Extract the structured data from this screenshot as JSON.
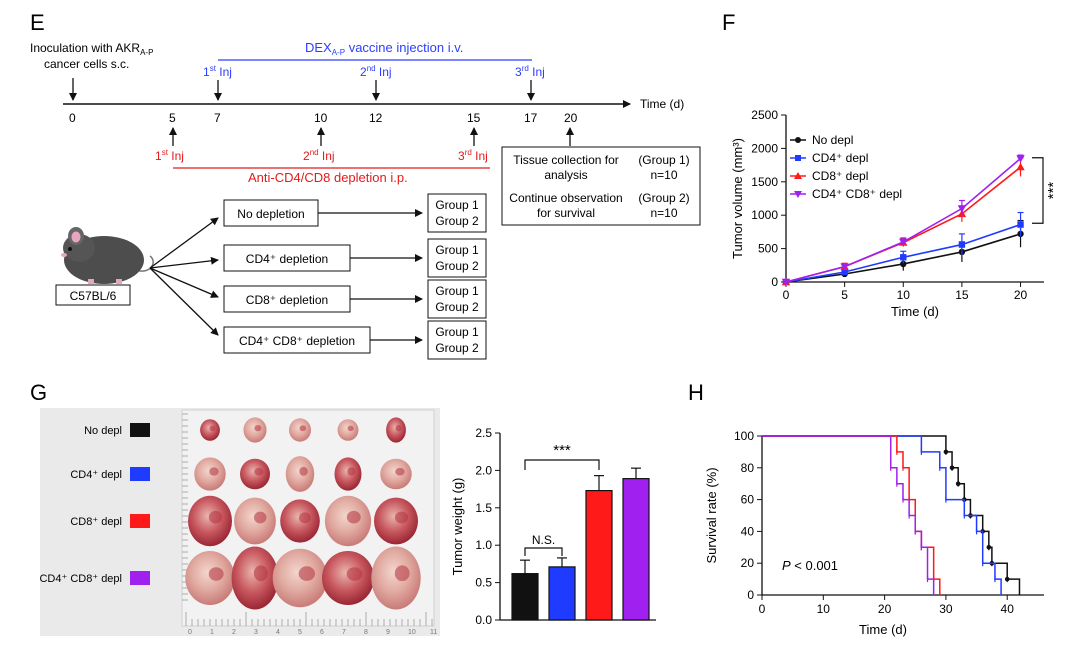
{
  "panels": {
    "E": "E",
    "F": "F",
    "G": "G",
    "H": "H"
  },
  "colors": {
    "black": "#111111",
    "blue": "#1f3bff",
    "red": "#ff1a1a",
    "purple": "#a020f0",
    "timeline_blue": "#2d3dff",
    "timeline_red": "#e41a1c",
    "photo_bg": "#ececec"
  },
  "panel_e": {
    "inoculation": [
      "Inoculation with AKR",
      "cancer cells s.c."
    ],
    "inoculation_sub": "A-P",
    "dex_title": "DEX",
    "dex_sub": "A-P",
    "dex_rest": " vaccine injection i.v.",
    "inj_labels": [
      {
        "n": "1",
        "sup": "st",
        "t": " Inj"
      },
      {
        "n": "2",
        "sup": "nd",
        "t": " Inj"
      },
      {
        "n": "3",
        "sup": "rd",
        "t": " Inj"
      }
    ],
    "time_label": "Time (d)",
    "days": [
      "0",
      "5",
      "7",
      "10",
      "12",
      "15",
      "17",
      "20"
    ],
    "depl_label": "Anti-CD4/CD8 depletion i.p.",
    "tissue_box": {
      "row1_left": [
        "Tissue collection for",
        "analysis"
      ],
      "row1_right": [
        "(Group 1)",
        "n=10"
      ],
      "row2_left": [
        "Continue observation",
        "for survival"
      ],
      "row2_right": [
        "(Group 2)",
        "n=10"
      ]
    },
    "mouse_label": "C57BL/6",
    "groups": [
      {
        "label": "No depletion"
      },
      {
        "label": "CD4⁺ depletion"
      },
      {
        "label": "CD8⁺ depletion"
      },
      {
        "label": "CD4⁺ CD8⁺ depletion"
      }
    ],
    "group_box": [
      "Group 1",
      "Group 2"
    ]
  },
  "legend": [
    {
      "label": "No depl",
      "color": "#111111",
      "marker": "circle"
    },
    {
      "label": "CD4⁺ depl",
      "color": "#1f3bff",
      "marker": "square"
    },
    {
      "label": "CD8⁺ depl",
      "color": "#ff1a1a",
      "marker": "triangle"
    },
    {
      "label": "CD4⁺ CD8⁺ depl",
      "color": "#a020f0",
      "marker": "triangle-down"
    }
  ],
  "significance": {
    "triple": "***",
    "ns": "N.S."
  },
  "chart_data": [
    {
      "id": "F",
      "type": "line",
      "xlabel": "Time (d)",
      "ylabel": "Tumor volume (mm³)",
      "xlim": [
        0,
        22
      ],
      "ylim": [
        0,
        2500
      ],
      "xticks": [
        0,
        5,
        10,
        15,
        20
      ],
      "yticks": [
        0,
        500,
        1000,
        1500,
        2000,
        2500
      ],
      "x": [
        0,
        5,
        10,
        15,
        20
      ],
      "series": [
        {
          "name": "No depl",
          "values": [
            0,
            120,
            270,
            450,
            720
          ],
          "err": [
            0,
            40,
            100,
            150,
            200
          ]
        },
        {
          "name": "CD4⁺ depl",
          "values": [
            0,
            150,
            370,
            560,
            860
          ],
          "err": [
            0,
            40,
            90,
            160,
            180
          ]
        },
        {
          "name": "CD8⁺ depl",
          "values": [
            0,
            230,
            590,
            1020,
            1720
          ],
          "err": [
            0,
            50,
            60,
            120,
            140
          ]
        },
        {
          "name": "CD4⁺ CD8⁺ depl",
          "values": [
            0,
            230,
            600,
            1100,
            1850
          ],
          "err": [
            0,
            40,
            60,
            120,
            50
          ]
        }
      ]
    },
    {
      "id": "G",
      "type": "bar",
      "ylabel": "Tumor weight (g)",
      "ylim": [
        0,
        2.5
      ],
      "yticks": [
        "0.0",
        "0.5",
        "1.0",
        "1.5",
        "2.0",
        "2.5"
      ],
      "categories": [
        "No depl",
        "CD4⁺ depl",
        "CD8⁺ depl",
        "CD4⁺ CD8⁺ depl"
      ],
      "values": [
        0.62,
        0.71,
        1.73,
        1.89
      ],
      "err": [
        0.18,
        0.12,
        0.2,
        0.14
      ]
    },
    {
      "id": "H",
      "type": "line",
      "step": true,
      "xlabel": "Time (d)",
      "ylabel": "Survival rate (%)",
      "xlim": [
        0,
        46
      ],
      "ylim": [
        0,
        100
      ],
      "xticks": [
        0,
        10,
        20,
        30,
        40
      ],
      "yticks": [
        0,
        20,
        40,
        60,
        80,
        100
      ],
      "annotation": "P < 0.001",
      "series": [
        {
          "name": "No depl",
          "points": [
            [
              0,
              100
            ],
            [
              30,
              100
            ],
            [
              30,
              90
            ],
            [
              31,
              90
            ],
            [
              31,
              80
            ],
            [
              32,
              80
            ],
            [
              32,
              70
            ],
            [
              33,
              70
            ],
            [
              33,
              60
            ],
            [
              34,
              60
            ],
            [
              34,
              50
            ],
            [
              36,
              50
            ],
            [
              36,
              40
            ],
            [
              37,
              40
            ],
            [
              37,
              30
            ],
            [
              37.5,
              30
            ],
            [
              37.5,
              20
            ],
            [
              40,
              20
            ],
            [
              40,
              10
            ],
            [
              42,
              10
            ],
            [
              42,
              0
            ]
          ]
        },
        {
          "name": "CD4⁺ depl",
          "points": [
            [
              0,
              100
            ],
            [
              26,
              100
            ],
            [
              26,
              90
            ],
            [
              29,
              90
            ],
            [
              29,
              80
            ],
            [
              30,
              80
            ],
            [
              30,
              60
            ],
            [
              33,
              60
            ],
            [
              33,
              50
            ],
            [
              35,
              50
            ],
            [
              35,
              40
            ],
            [
              36,
              40
            ],
            [
              36,
              20
            ],
            [
              38,
              20
            ],
            [
              38,
              10
            ],
            [
              39,
              10
            ],
            [
              39,
              0
            ]
          ]
        },
        {
          "name": "CD8⁺ depl",
          "points": [
            [
              0,
              100
            ],
            [
              22,
              100
            ],
            [
              22,
              90
            ],
            [
              23,
              90
            ],
            [
              23,
              80
            ],
            [
              24,
              80
            ],
            [
              24,
              60
            ],
            [
              25,
              60
            ],
            [
              25,
              40
            ],
            [
              26,
              40
            ],
            [
              26,
              30
            ],
            [
              28,
              30
            ],
            [
              28,
              10
            ],
            [
              29,
              10
            ],
            [
              29,
              0
            ]
          ]
        },
        {
          "name": "CD4⁺ CD8⁺ depl",
          "points": [
            [
              0,
              100
            ],
            [
              21,
              100
            ],
            [
              21,
              80
            ],
            [
              22,
              80
            ],
            [
              22,
              70
            ],
            [
              23,
              70
            ],
            [
              23,
              60
            ],
            [
              24,
              60
            ],
            [
              24,
              50
            ],
            [
              25,
              50
            ],
            [
              25,
              40
            ],
            [
              26,
              40
            ],
            [
              26,
              30
            ],
            [
              27,
              30
            ],
            [
              27,
              10
            ],
            [
              28,
              10
            ],
            [
              28,
              0
            ]
          ]
        }
      ]
    }
  ]
}
